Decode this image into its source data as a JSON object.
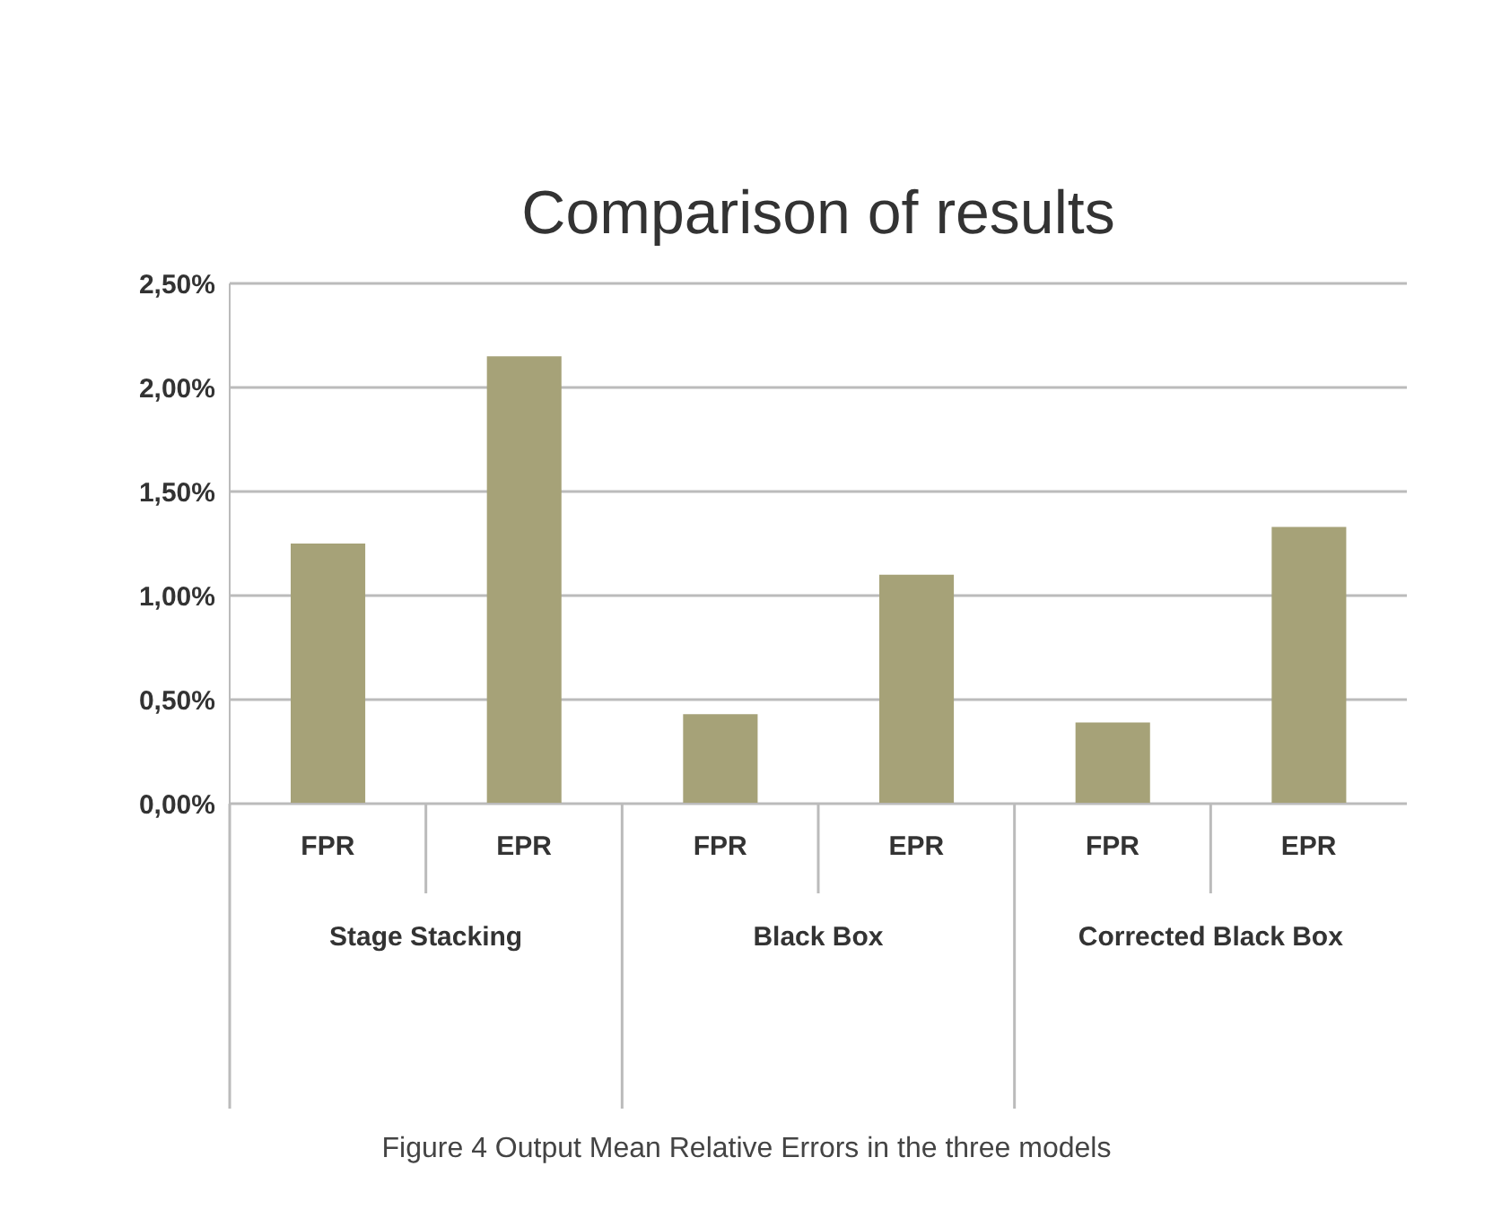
{
  "chart_data": {
    "type": "bar",
    "title": "Comparison of results",
    "categories": [
      "FPR",
      "EPR",
      "FPR",
      "EPR",
      "FPR",
      "EPR"
    ],
    "values": [
      1.25,
      2.15,
      0.43,
      1.1,
      0.39,
      1.33
    ],
    "color": "#a6a278",
    "ylim": [
      0,
      2.5
    ],
    "yticks": [
      {
        "value": 0,
        "label": "0,00%"
      },
      {
        "value": 0.5,
        "label": "0,50%"
      },
      {
        "value": 1,
        "label": "1,00%"
      },
      {
        "value": 1.5,
        "label": "1,50%"
      },
      {
        "value": 2,
        "label": "2,00%"
      },
      {
        "value": 2.5,
        "label": "2,50%"
      }
    ],
    "grid": "y",
    "annotations": [
      "Stage Stacking",
      "Black Box",
      "Corrected Black Box",
      "Figure 4 Output Mean Relative Errors in the three models"
    ]
  }
}
